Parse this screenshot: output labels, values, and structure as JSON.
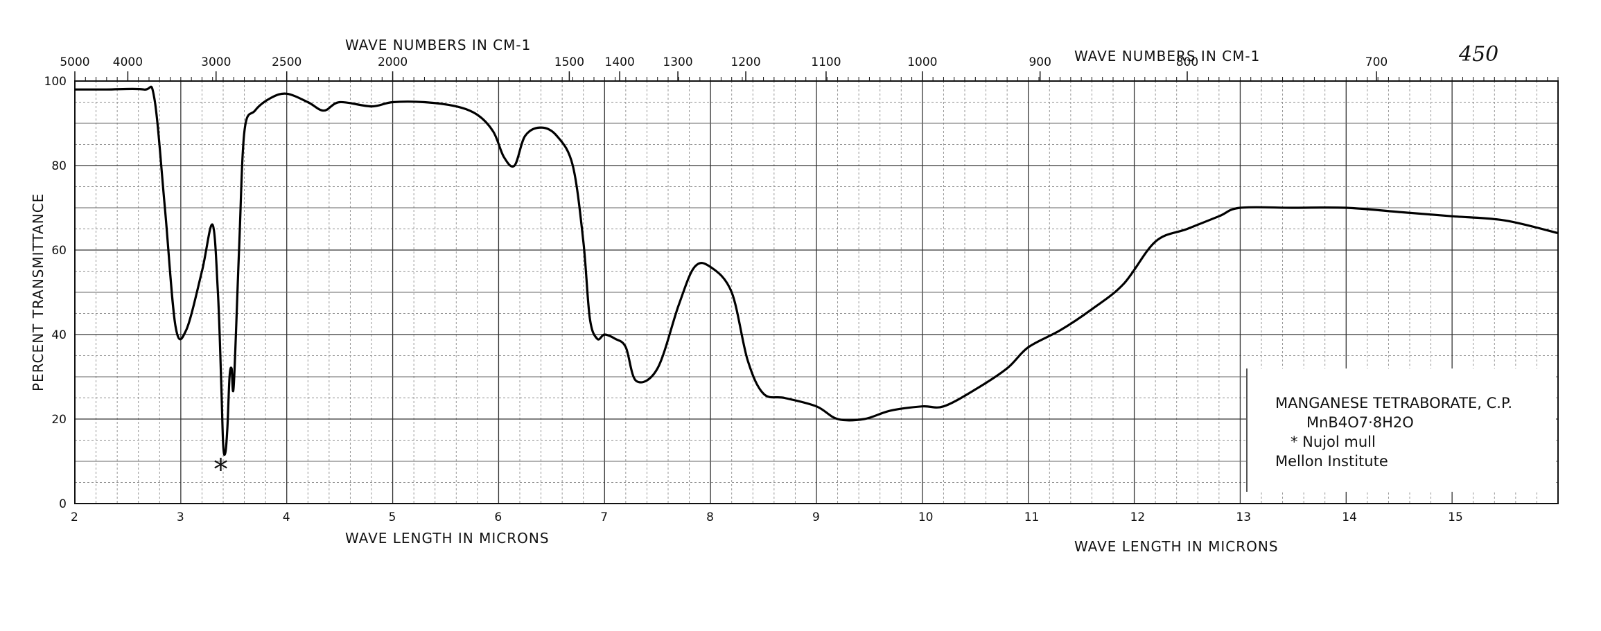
{
  "top_label_left": "WAVE NUMBERS IN CM-1",
  "top_label_right": "WAVE NUMBERS IN CM-1",
  "bottom_label_left": "WAVE LENGTH IN MICRONS",
  "bottom_label_right": "WAVE LENGTH IN MICRONS",
  "y_axis_label": "PERCENT TRANSMITTANCE",
  "spectrum_number": "450",
  "legend": {
    "line1": "MANGANESE TETRABORATE, C.P.",
    "line2": "MnB4O7·8H2O",
    "line3": "* Nujol mull",
    "line4": "Mellon Institute"
  },
  "nujol_marker": "*",
  "chart_data": {
    "type": "line",
    "xlabel": "WAVE LENGTH IN MICRONS",
    "ylabel": "PERCENT TRANSMITTANCE",
    "xlim": [
      2,
      16
    ],
    "ylim": [
      0,
      100
    ],
    "x_ticks": [
      2,
      3,
      4,
      5,
      6,
      7,
      8,
      9,
      10,
      11,
      12,
      13,
      14,
      15
    ],
    "y_ticks": [
      0,
      20,
      40,
      60,
      80,
      100
    ],
    "top_ticks": [
      {
        "label": "5000",
        "micron": 2.0
      },
      {
        "label": "4000",
        "micron": 2.5
      },
      {
        "label": "3000",
        "micron": 3.333
      },
      {
        "label": "2500",
        "micron": 4.0
      },
      {
        "label": "2000",
        "micron": 5.0
      },
      {
        "label": "1500",
        "micron": 6.667
      },
      {
        "label": "1400",
        "micron": 7.143
      },
      {
        "label": "1300",
        "micron": 7.692
      },
      {
        "label": "1200",
        "micron": 8.333
      },
      {
        "label": "1100",
        "micron": 9.091
      },
      {
        "label": "1000",
        "micron": 10.0
      },
      {
        "label": "900",
        "micron": 11.111
      },
      {
        "label": "800",
        "micron": 12.5
      },
      {
        "label": "700",
        "micron": 14.286
      }
    ],
    "grid": true,
    "series": [
      {
        "x": [
          2.0,
          2.3,
          2.65,
          2.75,
          2.85,
          2.95,
          3.05,
          3.2,
          3.3,
          3.35,
          3.38,
          3.4,
          3.42,
          3.44,
          3.46,
          3.48,
          3.5,
          3.55,
          3.6,
          3.7,
          3.85,
          4.0,
          4.2,
          4.35,
          4.5,
          4.8,
          5.0,
          5.3,
          5.6,
          5.8,
          5.95,
          6.05,
          6.15,
          6.25,
          6.4,
          6.55,
          6.7,
          6.8,
          6.86,
          6.93,
          7.0,
          7.1,
          7.2,
          7.3,
          7.5,
          7.7,
          7.85,
          8.0,
          8.2,
          8.35,
          8.5,
          8.7,
          9.0,
          9.2,
          9.45,
          9.7,
          10.0,
          10.2,
          10.5,
          10.8,
          11.0,
          11.3,
          11.6,
          11.9,
          12.2,
          12.5,
          12.8,
          13.0,
          13.5,
          14.0,
          14.5,
          15.0,
          15.5,
          16.0
        ],
        "y": [
          98,
          98,
          98,
          96,
          70,
          42,
          41,
          55,
          66,
          50,
          30,
          14,
          12,
          18,
          30,
          32,
          28,
          60,
          88,
          93,
          96,
          97,
          95,
          93,
          95,
          94,
          95,
          95,
          94,
          92,
          88,
          82,
          80,
          87,
          89,
          87,
          80,
          62,
          44,
          39,
          40,
          39,
          37,
          29,
          32,
          47,
          56,
          56,
          50,
          34,
          26,
          25,
          23,
          20,
          20,
          22,
          23,
          23,
          27,
          32,
          37,
          41,
          46,
          52,
          62,
          65,
          68,
          70,
          70,
          70,
          69,
          68,
          67,
          64
        ]
      }
    ]
  }
}
